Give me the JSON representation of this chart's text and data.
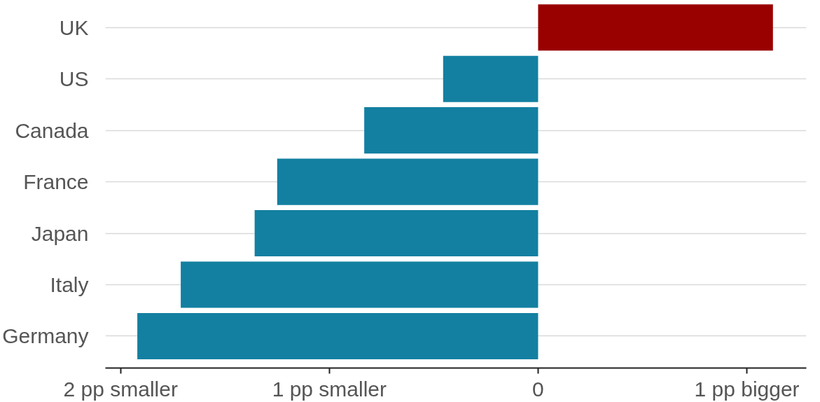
{
  "chart_data": {
    "type": "bar",
    "orientation": "horizontal",
    "categories": [
      "UK",
      "US",
      "Canada",
      "France",
      "Japan",
      "Italy",
      "Germany"
    ],
    "values": [
      1.125,
      -0.455,
      -0.833,
      -1.25,
      -1.358,
      -1.712,
      -1.92
    ],
    "colors": [
      "#990000",
      "#1380a1",
      "#1380a1",
      "#1380a1",
      "#1380a1",
      "#1380a1",
      "#1380a1"
    ],
    "xlim": [
      -2.073,
      1.285
    ],
    "xticks": [
      {
        "value": -2,
        "label": "2 pp smaller"
      },
      {
        "value": -1,
        "label": "1 pp smaller"
      },
      0,
      {
        "value": 1,
        "label": "1 pp bigger"
      }
    ],
    "grid": "y"
  }
}
